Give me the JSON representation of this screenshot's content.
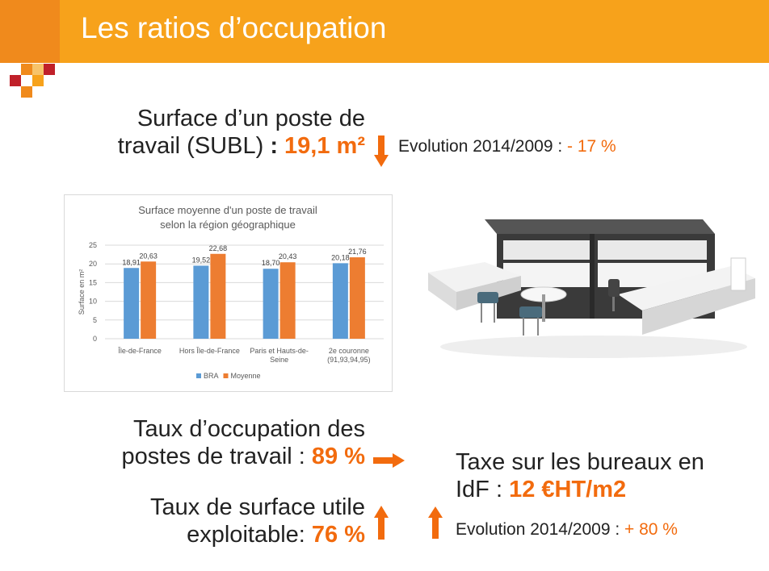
{
  "slide": {
    "title": "Les ratios d’occupation"
  },
  "surface": {
    "line1": "Surface d’un poste de",
    "line2_prefix": "travail (SUBL)",
    "line2_sep": " : ",
    "value": "19,1 m²",
    "evolution_label": "Evolution 2014/2009 :",
    "evolution_value": "- 17 %"
  },
  "occupation": {
    "line1": "Taux d’occupation des",
    "line2_prefix": "postes de travail :",
    "value": "89 %"
  },
  "surface_utile": {
    "line1": "Taux de surface utile",
    "line2_prefix": "exploitable:",
    "value": "76 %"
  },
  "taxe": {
    "line1": "Taxe sur les bureaux en",
    "line2_prefix": "IdF :",
    "value": "12 €HT/m2",
    "evolution_label": "Evolution 2014/2009 :",
    "evolution_value": "+ 80 %"
  },
  "colors": {
    "accent": "#f26b0e",
    "header": "#f7a21b",
    "bra": "#5b9bd5",
    "moyenne": "#ed7d31",
    "furniture_dark": "#3a3a3a"
  },
  "chart_data": {
    "type": "bar",
    "title": "Surface moyenne d'un poste de travail selon la région géographique",
    "title_lines": [
      "Surface moyenne d'un poste de travail",
      "selon la région géographique"
    ],
    "ylabel": "Surface en m²",
    "xlabel": "",
    "ylim": [
      0,
      25
    ],
    "yticks": [
      0,
      5,
      10,
      15,
      20,
      25
    ],
    "grid": true,
    "legend_position": "bottom",
    "categories": [
      [
        "Île-de-France"
      ],
      [
        "Hors Île-de-France"
      ],
      [
        "Paris et Hauts-de-",
        "Seine"
      ],
      [
        "2e couronne",
        "(91,93,94,95)"
      ]
    ],
    "series": [
      {
        "name": "BRA",
        "values": [
          18.91,
          19.52,
          18.7,
          20.18
        ],
        "labels": [
          "18,91",
          "19,52",
          "18,70",
          "20,18"
        ]
      },
      {
        "name": "Moyenne",
        "values": [
          20.63,
          22.68,
          20.43,
          21.76
        ],
        "labels": [
          "20,63",
          "22,68",
          "20,43",
          "21,76"
        ]
      }
    ]
  }
}
